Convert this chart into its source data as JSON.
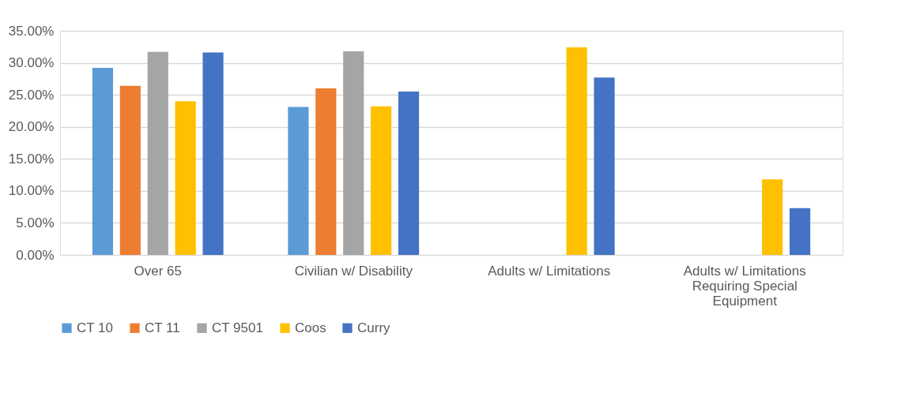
{
  "chart_data": {
    "type": "bar",
    "categories": [
      "Over 65",
      "Civilian w/ Disability",
      "Adults w/ Limitations",
      "Adults w/ Limitations Requiring Special Equipment"
    ],
    "series": [
      {
        "name": "CT 10",
        "color": "#5b9bd5",
        "values": [
          29.2,
          23.1,
          null,
          null
        ]
      },
      {
        "name": "CT 11",
        "color": "#ed7d31",
        "values": [
          26.4,
          26.0,
          null,
          null
        ]
      },
      {
        "name": "CT 9501",
        "color": "#a5a5a5",
        "values": [
          31.7,
          31.8,
          null,
          null
        ]
      },
      {
        "name": "Coos",
        "color": "#ffc000",
        "values": [
          24.0,
          23.2,
          32.4,
          11.8
        ]
      },
      {
        "name": "Curry",
        "color": "#4472c4",
        "values": [
          31.6,
          25.5,
          27.7,
          7.3
        ]
      }
    ],
    "ylim": [
      0,
      35
    ],
    "yticks": [
      {
        "value": 0,
        "label": "0.00%"
      },
      {
        "value": 5,
        "label": "5.00%"
      },
      {
        "value": 10,
        "label": "10.00%"
      },
      {
        "value": 15,
        "label": "15.00%"
      },
      {
        "value": 20,
        "label": "20.00%"
      },
      {
        "value": 25,
        "label": "25.00%"
      },
      {
        "value": 30,
        "label": "30.00%"
      },
      {
        "value": 35,
        "label": "35.00%"
      }
    ],
    "grid": "y",
    "legend": "bottom"
  }
}
